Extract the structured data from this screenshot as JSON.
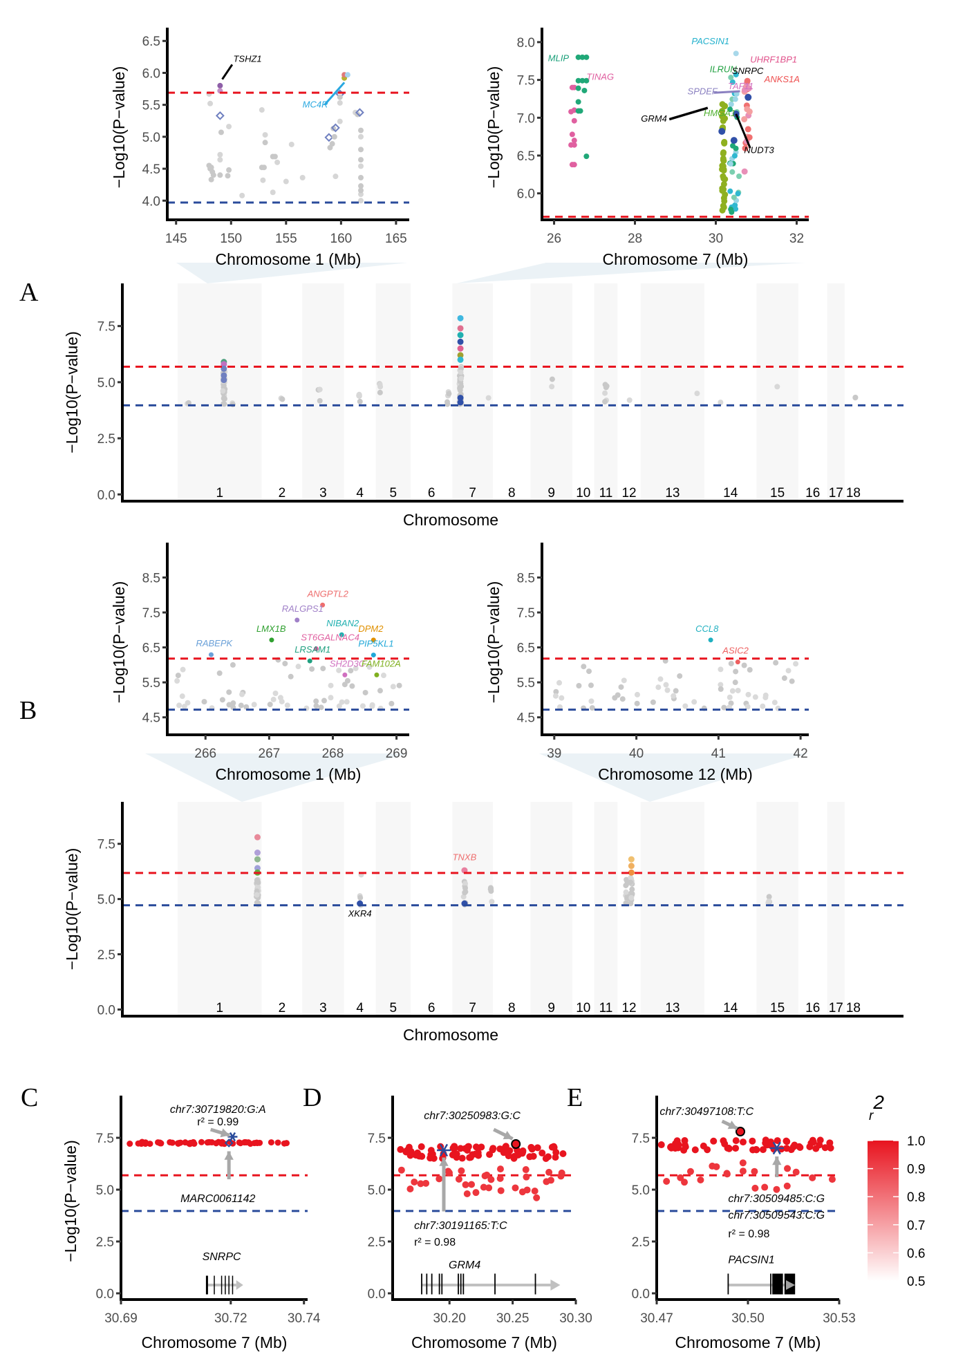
{
  "chart_data": [
    {
      "id": "A_zoom_chr1",
      "type": "scatter",
      "title": "",
      "xlabel": "Chromosome 1 (Mb)",
      "ylabel": "−Log10(P−value)",
      "xlim": [
        144.2,
        166.2
      ],
      "ylim": [
        3.7,
        6.6
      ],
      "xticks": [
        145,
        150,
        155,
        160,
        165
      ],
      "yticks": [
        4.0,
        4.5,
        5.0,
        5.5,
        6.0,
        6.5
      ],
      "ytick_labels": [
        "4.0",
        "4.5",
        "5.0",
        "5.5",
        "6.0",
        "6.5"
      ],
      "thresholds": {
        "red": 5.69,
        "blue": 3.97
      },
      "points": [
        [
          148.0,
          4.55,
          "#c8c8c8"
        ],
        [
          148.1,
          4.5,
          "#c8c8c8"
        ],
        [
          148.2,
          4.52,
          "#c8c8c8"
        ],
        [
          148.3,
          4.45,
          "#c8c8c8"
        ],
        [
          148.4,
          4.4,
          "#c8c8c8"
        ],
        [
          148.0,
          5.67,
          "#d6d6d6"
        ],
        [
          148.1,
          5.52,
          "#d6d6d6"
        ],
        [
          148.2,
          4.33,
          "#c8c8c8"
        ],
        [
          149.0,
          5.8,
          "#8e5fa8"
        ],
        [
          149.0,
          5.72,
          "#c490c6"
        ],
        [
          149.0,
          5.33,
          "#7080c0"
        ],
        [
          149.1,
          5.07,
          "#c8c8c8"
        ],
        [
          149.0,
          4.72,
          "#d6d6d6"
        ],
        [
          149.0,
          4.64,
          "#d6d6d6"
        ],
        [
          149.0,
          4.4,
          "#c8c8c8"
        ],
        [
          149.8,
          5.16,
          "#d6d6d6"
        ],
        [
          149.8,
          4.48,
          "#c8c8c8"
        ],
        [
          149.7,
          4.39,
          "#c8c8c8"
        ],
        [
          151.0,
          4.08,
          "#d6d6d6"
        ],
        [
          152.8,
          5.42,
          "#d6d6d6"
        ],
        [
          153.1,
          5.03,
          "#d6d6d6"
        ],
        [
          153.1,
          4.91,
          "#c8c8c8"
        ],
        [
          153.0,
          4.52,
          "#c8c8c8"
        ],
        [
          152.8,
          4.52,
          "#c8c8c8"
        ],
        [
          152.9,
          4.32,
          "#d6d6d6"
        ],
        [
          153.8,
          4.69,
          "#c8c8c8"
        ],
        [
          154.0,
          4.69,
          "#c8c8c8"
        ],
        [
          154.2,
          4.6,
          "#d6d6d6"
        ],
        [
          153.8,
          4.13,
          "#d6d6d6"
        ],
        [
          155.0,
          4.3,
          "#d6d6d6"
        ],
        [
          155.5,
          4.88,
          "#d6d6d6"
        ],
        [
          156.5,
          4.36,
          "#d6d6d6"
        ],
        [
          158.9,
          4.99,
          "#7080c0"
        ],
        [
          159.0,
          4.83,
          "#c8c8c8"
        ],
        [
          159.2,
          4.89,
          "#c8c8c8"
        ],
        [
          159.3,
          5.13,
          "#c8c8c8"
        ],
        [
          159.5,
          5.14,
          "#7080c0"
        ],
        [
          159.4,
          5.0,
          "#c8c8c8"
        ],
        [
          159.5,
          4.38,
          "#d6d6d6"
        ],
        [
          159.9,
          5.67,
          "#7080c0"
        ],
        [
          159.9,
          5.62,
          "#c8c8c8"
        ],
        [
          159.9,
          5.53,
          "#d6d6d6"
        ],
        [
          159.9,
          5.24,
          "#d6d6d6"
        ],
        [
          160.3,
          5.92,
          "#b8b030"
        ],
        [
          160.3,
          5.97,
          "#e07a7a"
        ],
        [
          160.6,
          5.97,
          "#a8d4f0"
        ],
        [
          161.3,
          5.38,
          "#d6d6d6"
        ],
        [
          161.5,
          5.35,
          "#c8c8c8"
        ],
        [
          161.7,
          5.38,
          "#7080c0"
        ],
        [
          161.8,
          5.1,
          "#c8c8c8"
        ],
        [
          161.8,
          5.0,
          "#d6d6d6"
        ],
        [
          161.8,
          4.8,
          "#c8c8c8"
        ],
        [
          161.8,
          4.64,
          "#c8c8c8"
        ],
        [
          161.8,
          4.54,
          "#d6d6d6"
        ],
        [
          161.8,
          4.36,
          "#c8c8c8"
        ],
        [
          161.8,
          4.23,
          "#c8c8c8"
        ],
        [
          161.8,
          4.1,
          "#d6d6d6"
        ],
        [
          161.8,
          4.0,
          "#d6d6d6"
        ],
        [
          161.8,
          4.16,
          "#c8c8c8"
        ]
      ],
      "labels": [
        {
          "text": "TSHZ1",
          "color": "#000000",
          "x": 150.2,
          "y": 6.17,
          "line": [
            [
              149.2,
              5.9
            ],
            [
              150.1,
              6.13
            ]
          ]
        },
        {
          "text": "MC4R",
          "color": "#29a8e0",
          "x": 156.5,
          "y": 5.46,
          "line": [
            [
              158.5,
              5.5
            ],
            [
              160.3,
              5.85
            ]
          ]
        }
      ]
    },
    {
      "id": "A_zoom_chr7",
      "type": "scatter",
      "xlabel": "Chromosome 7 (Mb)",
      "ylabel": "−Log10(P−value)",
      "xlim": [
        25.7,
        32.3
      ],
      "ylim": [
        5.65,
        8.1
      ],
      "xticks": [
        26,
        28,
        30,
        32
      ],
      "yticks": [
        6.0,
        6.5,
        7.0,
        7.5,
        8.0
      ],
      "ytick_labels": [
        "6.0",
        "6.5",
        "7.0",
        "7.5",
        "8.0"
      ],
      "thresholds": {
        "red": 5.69
      },
      "labels": [
        {
          "text": "MLIP",
          "color": "#1aa07a",
          "x": 25.85,
          "y": 7.75
        },
        {
          "text": "TINAG",
          "color": "#e060a0",
          "x": 26.8,
          "y": 7.5
        },
        {
          "text": "PACSIN1",
          "color": "#21b0cc",
          "x": 29.4,
          "y": 7.97
        },
        {
          "text": "UHRF1BP1",
          "color": "#e0508a",
          "x": 30.85,
          "y": 7.73
        },
        {
          "text": "ILRUN",
          "color": "#20a040",
          "x": 29.85,
          "y": 7.6
        },
        {
          "text": "SNRPC",
          "color": "#000000",
          "x": 30.4,
          "y": 7.58
        },
        {
          "text": "ANKS1A",
          "color": "#ee5050",
          "x": 31.2,
          "y": 7.47
        },
        {
          "text": "SPDEF",
          "color": "#8a80c0",
          "x": 29.3,
          "y": 7.31
        },
        {
          "text": "TAF11",
          "color": "#d070c0",
          "x": 30.3,
          "y": 7.38
        },
        {
          "text": "GRM4",
          "color": "#000000",
          "x": 28.15,
          "y": 6.95
        },
        {
          "text": "HMGA1",
          "color": "#50b030",
          "x": 29.7,
          "y": 7.02
        },
        {
          "text": "NUDT3",
          "color": "#000000",
          "x": 30.7,
          "y": 6.53
        }
      ]
    },
    {
      "id": "A_manhattan",
      "type": "scatter",
      "xlabel": "Chromosome",
      "ylabel": "−Log10(P−value)",
      "ylim": [
        -0.3,
        9.4
      ],
      "yticks": [
        0.0,
        2.5,
        5.0,
        7.5
      ],
      "ytick_labels": [
        "0.0",
        "2.5",
        "5.0",
        "7.5"
      ],
      "chromosomes": [
        "1",
        "2",
        "3",
        "4",
        "5",
        "6",
        "7",
        "8",
        "9",
        "10",
        "11",
        "12",
        "13",
        "14",
        "15",
        "16",
        "17",
        "18"
      ],
      "thresholds": {
        "red": 5.69,
        "blue": 3.97
      }
    },
    {
      "id": "B_zoom_chr1",
      "type": "scatter",
      "xlabel": "Chromosome 1 (Mb)",
      "ylabel": "−Log10(P−value)",
      "xlim": [
        265.4,
        269.2
      ],
      "ylim": [
        4.0,
        9.3
      ],
      "xticks": [
        266,
        267,
        268,
        269
      ],
      "yticks": [
        4.5,
        5.5,
        6.5,
        7.5,
        8.5
      ],
      "ytick_labels": [
        "4.5",
        "5.5",
        "6.5",
        "7.5",
        "8.5"
      ],
      "thresholds": {
        "red": 6.18,
        "blue": 4.72
      },
      "labels": [
        {
          "text": "ANGPTL2",
          "color": "#ee6e6e",
          "x": 267.6,
          "y": 7.95
        },
        {
          "text": "RALGPS1",
          "color": "#a080c8",
          "x": 267.2,
          "y": 7.52
        },
        {
          "text": "NIBAN2",
          "color": "#20b0b0",
          "x": 267.9,
          "y": 7.1
        },
        {
          "text": "LMX1B",
          "color": "#30a030",
          "x": 266.8,
          "y": 6.95
        },
        {
          "text": "DPM2",
          "color": "#e09000",
          "x": 268.4,
          "y": 6.95
        },
        {
          "text": "ST6GALNAC4",
          "color": "#e060a0",
          "x": 267.5,
          "y": 6.7
        },
        {
          "text": "PIP5KL1",
          "color": "#20a8d8",
          "x": 268.4,
          "y": 6.52
        },
        {
          "text": "LRSAM1",
          "color": "#20a080",
          "x": 267.4,
          "y": 6.35
        },
        {
          "text": "RABEPK",
          "color": "#6aa0d8",
          "x": 265.85,
          "y": 6.53
        },
        {
          "text": "SH2D3C",
          "color": "#d070c0",
          "x": 267.95,
          "y": 5.95
        },
        {
          "text": "FAM102A",
          "color": "#80b020",
          "x": 268.45,
          "y": 5.95
        }
      ]
    },
    {
      "id": "B_zoom_chr12",
      "type": "scatter",
      "xlabel": "Chromosome 12 (Mb)",
      "ylabel": "−Log10(P−value)",
      "xlim": [
        38.85,
        42.1
      ],
      "ylim": [
        4.0,
        9.3
      ],
      "xticks": [
        39,
        40,
        41,
        42
      ],
      "yticks": [
        4.5,
        5.5,
        6.5,
        7.5,
        8.5
      ],
      "ytick_labels": [
        "4.5",
        "5.5",
        "6.5",
        "7.5",
        "8.5"
      ],
      "thresholds": {
        "red": 6.18,
        "blue": 4.72
      },
      "labels": [
        {
          "text": "CCL8",
          "color": "#20b0c0",
          "x": 40.72,
          "y": 6.95
        },
        {
          "text": "ASIC2",
          "color": "#ee6060",
          "x": 41.05,
          "y": 6.32
        }
      ]
    },
    {
      "id": "B_manhattan",
      "type": "scatter",
      "xlabel": "Chromosome",
      "ylabel": "−Log10(P−value)",
      "ylim": [
        -0.3,
        9.4
      ],
      "yticks": [
        0.0,
        2.5,
        5.0,
        7.5
      ],
      "ytick_labels": [
        "0.0",
        "2.5",
        "5.0",
        "7.5"
      ],
      "chromosomes": [
        "1",
        "2",
        "3",
        "4",
        "5",
        "6",
        "7",
        "8",
        "9",
        "10",
        "11",
        "12",
        "13",
        "14",
        "15",
        "16",
        "17",
        "18"
      ],
      "thresholds": {
        "red": 6.18,
        "blue": 4.72
      },
      "labels": [
        {
          "text": "TNXB",
          "color": "#ee6e6e"
        },
        {
          "text": "XKR4",
          "color": "#000000"
        }
      ]
    },
    {
      "id": "C_regional",
      "type": "scatter",
      "xlabel": "Chromosome 7 (Mb)",
      "ylabel": "−Log10(P−value)",
      "xlim": [
        30.69,
        30.741
      ],
      "ylim": [
        -0.3,
        9.2
      ],
      "xticks": [
        30.69,
        30.72,
        30.74
      ],
      "xtick_labels": [
        "30.69",
        "30.72",
        "30.74"
      ],
      "yticks": [
        0.0,
        2.5,
        5.0,
        7.5
      ],
      "ytick_labels": [
        "0.0",
        "2.5",
        "5.0",
        "7.5"
      ],
      "thresholds": {
        "red": 5.69,
        "blue": 3.97
      },
      "lead_snp": {
        "label": "chr7:30719820:G:A",
        "r2_text": "r² = 0.99",
        "x": 30.7205,
        "y": 7.55
      },
      "marker": {
        "label": "MARC0061142",
        "x": 30.7195,
        "y": 7.25
      },
      "gene": {
        "name": "SNRPC",
        "start": 30.7135,
        "end": 30.7215
      }
    },
    {
      "id": "D_regional",
      "type": "scatter",
      "xlabel": "Chromosome 7 (Mb)",
      "ylabel": "",
      "xlim": [
        30.155,
        30.3
      ],
      "ylim": [
        -0.3,
        9.2
      ],
      "xticks": [
        30.2,
        30.25,
        30.3
      ],
      "xtick_labels": [
        "30.20",
        "30.25",
        "30.30"
      ],
      "yticks": [
        0.0,
        2.5,
        5.0,
        7.5
      ],
      "ytick_labels": [
        "0.0",
        "2.5",
        "5.0",
        "7.5"
      ],
      "thresholds": {
        "red": 5.69,
        "blue": 3.97
      },
      "lead_snp": {
        "label": "chr7:30250983:G:C",
        "x": 30.2525,
        "y": 7.2
      },
      "marker": {
        "label": "chr7:30191165:T:C",
        "r2_text": "r² = 0.98",
        "x": 30.1955,
        "y": 6.9
      },
      "gene": {
        "name": "GRM4",
        "start": 30.178,
        "end": 30.28
      }
    },
    {
      "id": "E_regional",
      "type": "scatter",
      "xlabel": "Chromosome 7 (Mb)",
      "ylabel": "",
      "xlim": [
        30.47,
        30.53
      ],
      "ylim": [
        -0.3,
        9.2
      ],
      "xticks": [
        30.47,
        30.5,
        30.53
      ],
      "xtick_labels": [
        "30.47",
        "30.50",
        "30.53"
      ],
      "yticks": [
        0.0,
        2.5,
        5.0,
        7.5
      ],
      "ytick_labels": [
        "0.0",
        "2.5",
        "5.0",
        "7.5"
      ],
      "thresholds": {
        "red": 5.69,
        "blue": 3.97
      },
      "lead_snp": {
        "label": "chr7:30497108:T:C",
        "x": 30.4975,
        "y": 7.8
      },
      "marker": {
        "label1": "chr7:30509485:C:G",
        "label2": "chr7:30509543:C:G",
        "r2_text": "r² = 0.98",
        "x": 30.5095,
        "y": 7.0
      },
      "gene": {
        "name": "PACSIN1",
        "start": 30.4935,
        "end": 30.5135
      }
    }
  ],
  "legend": {
    "title": "r",
    "title_sup": "2",
    "ticks": [
      "1.0",
      "0.9",
      "0.8",
      "0.7",
      "0.6",
      "0.5"
    ],
    "range": [
      0.5,
      1.0
    ],
    "low_color": "#ffffff",
    "high_color": "#e8141f",
    "placement": "right"
  },
  "panel_labels": [
    "A",
    "B",
    "C",
    "D",
    "E"
  ],
  "colors": {
    "threshold_red": "#e8141f",
    "threshold_blue": "#2a4b9b",
    "grey": "#c8c8c8",
    "band": "#f7f7f7",
    "zoom_fill": "#e8f0f5"
  }
}
